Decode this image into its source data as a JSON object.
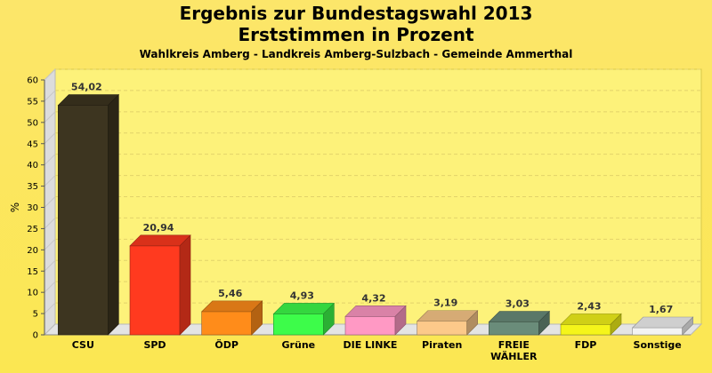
{
  "chart_data": {
    "type": "bar",
    "title": "Ergebnis zur Bundestagswahl 2013",
    "subtitle": "Erststimmen in Prozent",
    "caption": "Wahlkreis Amberg - Landkreis Amberg-Sulzbach - Gemeinde Ammerthal",
    "ylabel": "%",
    "xlabel": "",
    "ylim": [
      0,
      60
    ],
    "yticks": [
      "0",
      "5",
      "10",
      "15",
      "20",
      "25",
      "30",
      "35",
      "40",
      "45",
      "50",
      "55",
      "60"
    ],
    "grid": true,
    "categories": [
      "CSU",
      "SPD",
      "ÖDP",
      "Grüne",
      "DIE LINKE",
      "Piraten",
      "FREIE WÄHLER",
      "FDP",
      "Sonstige"
    ],
    "category_lines": [
      [
        "CSU"
      ],
      [
        "SPD"
      ],
      [
        "ÖDP"
      ],
      [
        "Grüne"
      ],
      [
        "DIE LINKE"
      ],
      [
        "Piraten"
      ],
      [
        "FREIE",
        "WÄHLER"
      ],
      [
        "FDP"
      ],
      [
        "Sonstige"
      ]
    ],
    "values": [
      54.02,
      20.94,
      5.46,
      4.93,
      4.32,
      3.19,
      3.03,
      2.43,
      1.67
    ],
    "value_labels": [
      "54,02",
      "20,94",
      "5,46",
      "4,93",
      "4,32",
      "3,19",
      "3,03",
      "2,43",
      "1,67"
    ],
    "colors": [
      "#3d3520",
      "#ff3a1f",
      "#ff8c1a",
      "#3dfc4a",
      "#ff99c4",
      "#fcc98a",
      "#6a8c7a",
      "#f5f51a",
      "#f3f3f3"
    ]
  }
}
